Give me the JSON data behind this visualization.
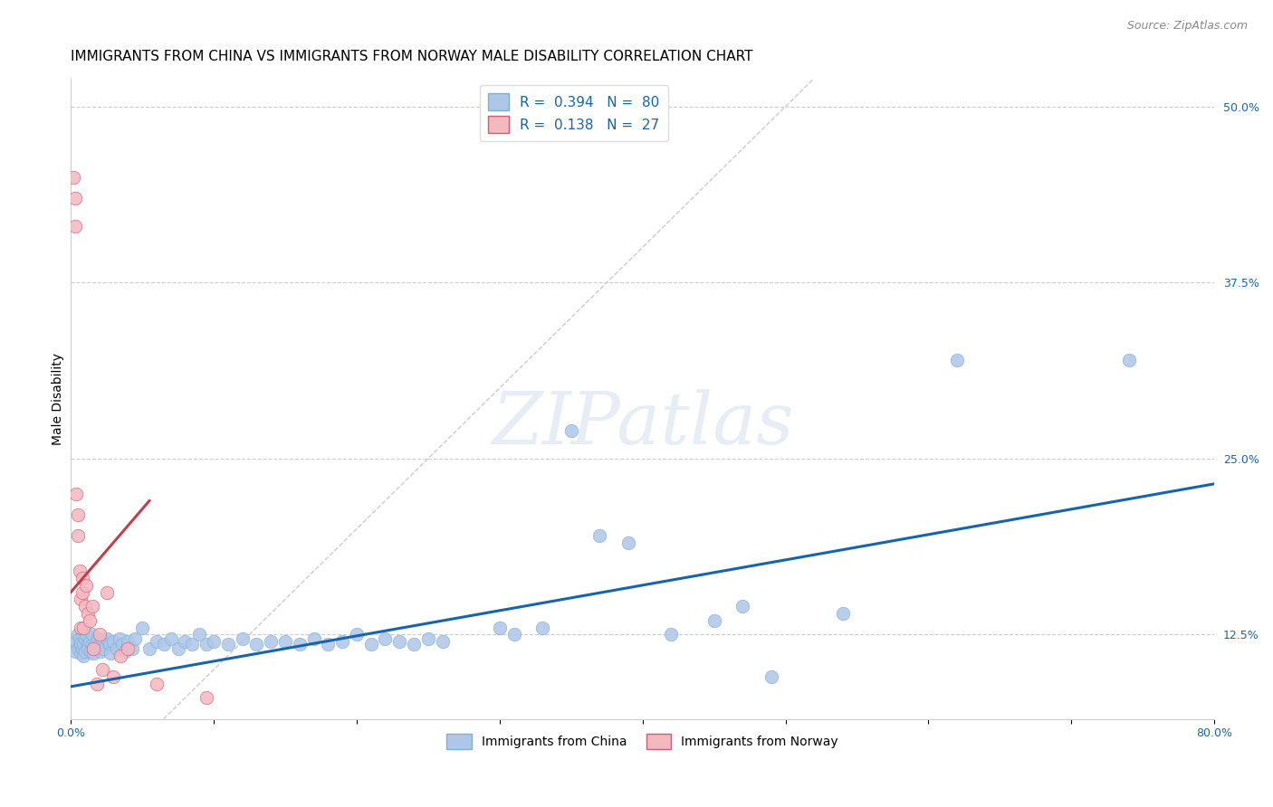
{
  "title": "IMMIGRANTS FROM CHINA VS IMMIGRANTS FROM NORWAY MALE DISABILITY CORRELATION CHART",
  "source": "Source: ZipAtlas.com",
  "ylabel": "Male Disability",
  "xlim": [
    0.0,
    0.8
  ],
  "ylim": [
    0.065,
    0.52
  ],
  "x_tick_positions": [
    0.0,
    0.1,
    0.2,
    0.3,
    0.4,
    0.5,
    0.6,
    0.7,
    0.8
  ],
  "x_tick_labels": [
    "0.0%",
    "",
    "",
    "",
    "",
    "",
    "",
    "",
    "80.0%"
  ],
  "y_ticks_right": [
    0.125,
    0.25,
    0.375,
    0.5
  ],
  "y_tick_labels_right": [
    "12.5%",
    "25.0%",
    "37.5%",
    "50.0%"
  ],
  "watermark": "ZIPatlas",
  "blue_line_x0": 0.0,
  "blue_line_y0": 0.088,
  "blue_line_x1": 0.8,
  "blue_line_y1": 0.232,
  "pink_line_x0": 0.0,
  "pink_line_y0": 0.155,
  "pink_line_x1": 0.055,
  "pink_line_y1": 0.22,
  "blue_line_color": "#1864ab",
  "pink_line_color": "#c0404a",
  "china_dot_color": "#aec6e8",
  "china_dot_edge": "#7bafd4",
  "norway_dot_color": "#f4b8c1",
  "norway_dot_edge": "#d45b6e",
  "grid_color": "#cccccc",
  "diag_color": "#cccccc",
  "title_fontsize": 11,
  "axis_label_fontsize": 10,
  "tick_fontsize": 9,
  "legend_fontsize": 11,
  "source_color": "#888888",
  "tick_color": "#1864ab",
  "china_x": [
    0.003,
    0.004,
    0.005,
    0.005,
    0.006,
    0.006,
    0.007,
    0.007,
    0.008,
    0.008,
    0.009,
    0.009,
    0.01,
    0.01,
    0.011,
    0.012,
    0.012,
    0.013,
    0.014,
    0.015,
    0.015,
    0.016,
    0.017,
    0.018,
    0.019,
    0.02,
    0.021,
    0.022,
    0.023,
    0.025,
    0.027,
    0.028,
    0.03,
    0.032,
    0.034,
    0.036,
    0.038,
    0.04,
    0.043,
    0.045,
    0.05,
    0.055,
    0.06,
    0.065,
    0.07,
    0.075,
    0.08,
    0.085,
    0.09,
    0.095,
    0.1,
    0.11,
    0.12,
    0.13,
    0.14,
    0.15,
    0.16,
    0.17,
    0.18,
    0.19,
    0.2,
    0.21,
    0.22,
    0.23,
    0.24,
    0.25,
    0.26,
    0.3,
    0.31,
    0.33,
    0.35,
    0.37,
    0.39,
    0.42,
    0.45,
    0.47,
    0.49,
    0.54,
    0.62,
    0.74
  ],
  "china_y": [
    0.113,
    0.12,
    0.115,
    0.125,
    0.118,
    0.122,
    0.112,
    0.119,
    0.115,
    0.125,
    0.11,
    0.118,
    0.122,
    0.113,
    0.125,
    0.118,
    0.115,
    0.12,
    0.113,
    0.118,
    0.125,
    0.112,
    0.119,
    0.115,
    0.122,
    0.118,
    0.113,
    0.12,
    0.115,
    0.122,
    0.118,
    0.112,
    0.12,
    0.115,
    0.122,
    0.118,
    0.113,
    0.12,
    0.115,
    0.122,
    0.13,
    0.115,
    0.12,
    0.118,
    0.122,
    0.115,
    0.12,
    0.118,
    0.125,
    0.118,
    0.12,
    0.118,
    0.122,
    0.118,
    0.12,
    0.12,
    0.118,
    0.122,
    0.118,
    0.12,
    0.125,
    0.118,
    0.122,
    0.12,
    0.118,
    0.122,
    0.12,
    0.13,
    0.125,
    0.13,
    0.27,
    0.195,
    0.19,
    0.125,
    0.135,
    0.145,
    0.095,
    0.14,
    0.32,
    0.32
  ],
  "norway_x": [
    0.002,
    0.003,
    0.003,
    0.004,
    0.005,
    0.005,
    0.006,
    0.007,
    0.007,
    0.008,
    0.008,
    0.009,
    0.01,
    0.011,
    0.012,
    0.013,
    0.015,
    0.016,
    0.018,
    0.02,
    0.022,
    0.025,
    0.03,
    0.035,
    0.04,
    0.06,
    0.095
  ],
  "norway_y": [
    0.45,
    0.435,
    0.415,
    0.225,
    0.21,
    0.195,
    0.17,
    0.15,
    0.13,
    0.165,
    0.155,
    0.13,
    0.145,
    0.16,
    0.14,
    0.135,
    0.145,
    0.115,
    0.09,
    0.125,
    0.1,
    0.155,
    0.095,
    0.11,
    0.115,
    0.09,
    0.08
  ]
}
